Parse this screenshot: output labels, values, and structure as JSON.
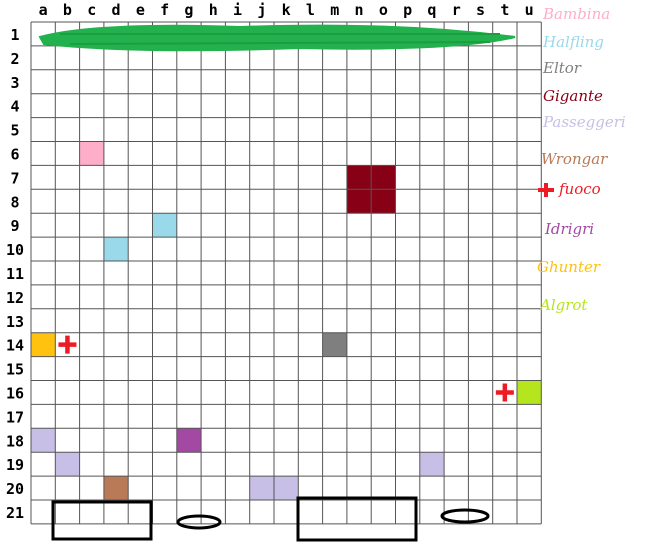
{
  "board": {
    "columns": [
      "a",
      "b",
      "c",
      "d",
      "e",
      "f",
      "g",
      "h",
      "i",
      "j",
      "k",
      "l",
      "m",
      "n",
      "o",
      "p",
      "q",
      "r",
      "s",
      "t",
      "u"
    ],
    "rows": [
      "1",
      "2",
      "3",
      "4",
      "5",
      "6",
      "7",
      "8",
      "9",
      "10",
      "11",
      "12",
      "13",
      "14",
      "15",
      "16",
      "17",
      "18",
      "19",
      "20",
      "21"
    ],
    "grid_color": "#555555",
    "banner_color": "#22b14c",
    "cells": [
      {
        "col": "c",
        "row": 6,
        "kind": "Bambina"
      },
      {
        "col": "n",
        "row": 7,
        "kind": "Gigante"
      },
      {
        "col": "o",
        "row": 7,
        "kind": "Gigante"
      },
      {
        "col": "n",
        "row": 8,
        "kind": "Gigante"
      },
      {
        "col": "o",
        "row": 8,
        "kind": "Gigante"
      },
      {
        "col": "f",
        "row": 9,
        "kind": "Halfling"
      },
      {
        "col": "d",
        "row": 10,
        "kind": "Halfling"
      },
      {
        "col": "a",
        "row": 14,
        "kind": "Ghunter"
      },
      {
        "col": "m",
        "row": 14,
        "kind": "Eltor"
      },
      {
        "col": "u",
        "row": 16,
        "kind": "Algrot"
      },
      {
        "col": "a",
        "row": 18,
        "kind": "Passeggeri"
      },
      {
        "col": "g",
        "row": 18,
        "kind": "Idrigri"
      },
      {
        "col": "b",
        "row": 19,
        "kind": "Passeggeri"
      },
      {
        "col": "q",
        "row": 19,
        "kind": "Passeggeri"
      },
      {
        "col": "d",
        "row": 20,
        "kind": "Wrongar"
      },
      {
        "col": "j",
        "row": 20,
        "kind": "Passeggeri"
      },
      {
        "col": "k",
        "row": 20,
        "kind": "Passeggeri"
      }
    ],
    "fire_markers": [
      {
        "col": "b",
        "row": 14
      },
      {
        "col": "t",
        "row": 16
      }
    ],
    "colors": {
      "Bambina": "#ffaec9",
      "Halfling": "#99d9ea",
      "Eltor": "#7f7f7f",
      "Gigante": "#880015",
      "Passeggeri": "#c8bfe7",
      "Wrongar": "#b97a57",
      "fuoco": "#ed1c24",
      "Idrigri": "#a349a4",
      "Ghunter": "#ffc20e",
      "Algrot": "#b5e61d"
    }
  },
  "legend": [
    {
      "key": "Bambina",
      "label": "Bambina",
      "icon": null
    },
    {
      "key": "Halfling",
      "label": "Halfling",
      "icon": null
    },
    {
      "key": "Eltor",
      "label": "Eltor",
      "icon": null
    },
    {
      "key": "Gigante",
      "label": "Gigante",
      "icon": null
    },
    {
      "key": "Passeggeri",
      "label": "Passeggeri",
      "icon": null
    },
    {
      "key": "Wrongar",
      "label": "Wrongar",
      "icon": null
    },
    {
      "key": "fuoco",
      "label": "fuoco",
      "icon": "fire-cross-icon"
    },
    {
      "key": "Idrigri",
      "label": "Idrigri",
      "icon": null
    },
    {
      "key": "Ghunter",
      "label": "Ghunter",
      "icon": null
    },
    {
      "key": "Algrot",
      "label": "Algrot",
      "icon": null
    }
  ]
}
